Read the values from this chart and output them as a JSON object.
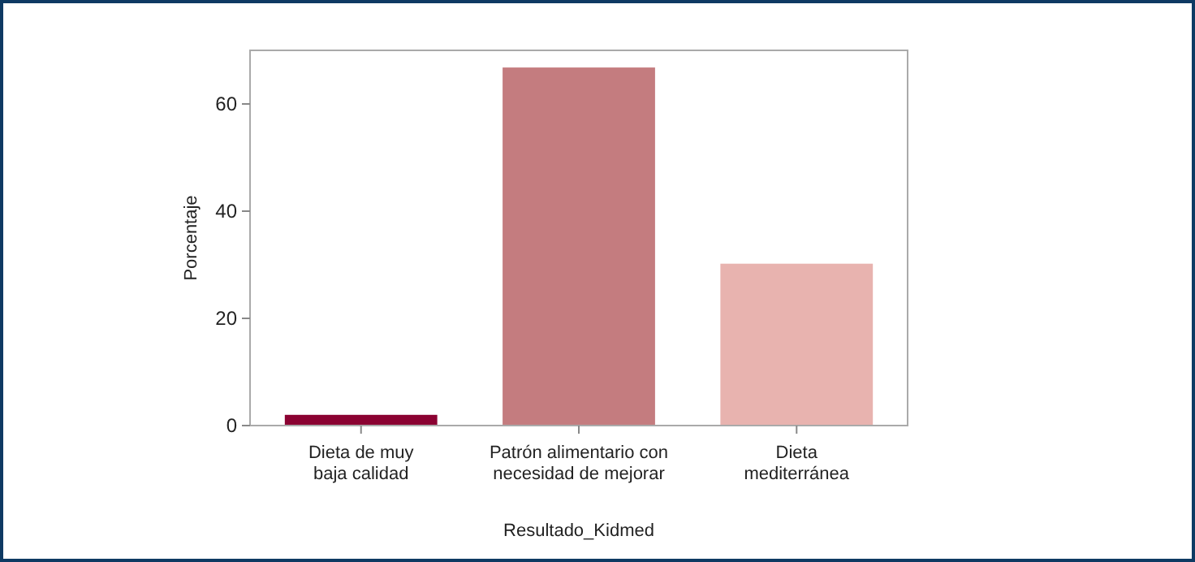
{
  "chart_data": {
    "type": "bar",
    "xlabel": "Resultado_Kidmed",
    "ylabel": "Porcentaje",
    "categories": [
      "Dieta de muy\nbaja calidad",
      "Patrón alimentario con\nnecesidad de mejorar",
      "Dieta\nmediterránea"
    ],
    "values": [
      2.0,
      66.8,
      30.2
    ],
    "colors": [
      "#8b0232",
      "#c47c7f",
      "#e8b3af"
    ],
    "ylim": [
      0,
      70
    ],
    "yticks": [
      0,
      20,
      40,
      60
    ],
    "grid": false
  }
}
